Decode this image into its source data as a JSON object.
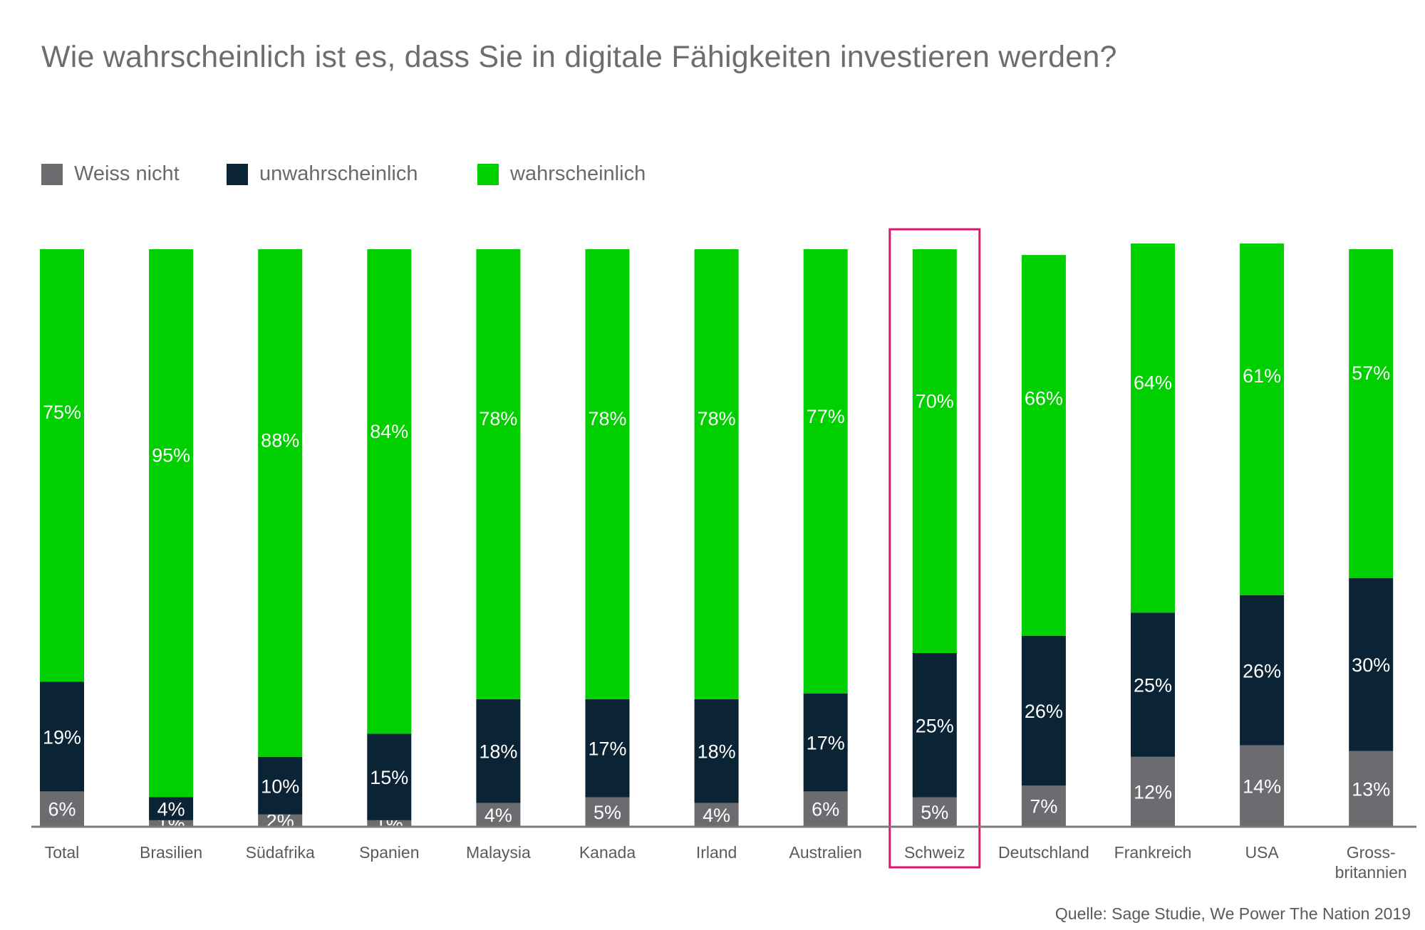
{
  "chart_data": {
    "type": "bar",
    "stacked": true,
    "title": "Wie wahrscheinlich ist es, dass Sie in digitale Fähigkeiten investieren werden?",
    "source": "Quelle: Sage Studie, We Power The Nation 2019",
    "categories": [
      "Total",
      "Brasilien",
      "Südafrika",
      "Spanien",
      "Malaysia",
      "Kanada",
      "Irland",
      "Australien",
      "Schweiz",
      "Deutschland",
      "Frankreich",
      "USA",
      "Gross-\nbritannien"
    ],
    "highlighted_category": "Schweiz",
    "ylim": [
      0,
      100
    ],
    "legend_position": "top-left",
    "grid": false,
    "series": [
      {
        "name": "Weiss nicht",
        "color": "#6b6b70",
        "values": [
          6,
          1,
          2,
          1,
          4,
          5,
          4,
          6,
          5,
          7,
          12,
          14,
          13
        ]
      },
      {
        "name": "unwahrscheinlich",
        "color": "#0a2335",
        "values": [
          19,
          4,
          10,
          15,
          18,
          17,
          18,
          17,
          25,
          26,
          25,
          26,
          30
        ]
      },
      {
        "name": "wahrscheinlich",
        "color": "#00d000",
        "values": [
          75,
          95,
          88,
          84,
          78,
          78,
          78,
          77,
          70,
          66,
          64,
          61,
          57
        ]
      }
    ]
  },
  "colors": {
    "highlight_frame": "#e0156d",
    "axis_line": "#7a7a7a",
    "label_text": "#ffffff",
    "category_text": "#5a5a5a"
  }
}
